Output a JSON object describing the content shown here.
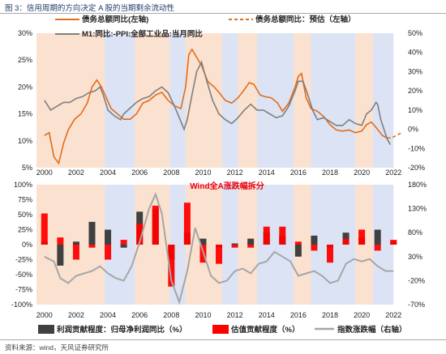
{
  "title": "图 3：信用周期的方向决定 A 股的当期剩余流动性",
  "source": "资料来源：wind，天风证券研究所",
  "colors": {
    "orange": "#e46c1b",
    "gray": "#7f7f7f",
    "peach": "#fbe1d0",
    "blue": "#dbe3f4",
    "dark": "#404040",
    "red": "#ff0000",
    "lightgray": "#a6a6a6"
  },
  "chart_data": [
    {
      "type": "line",
      "legend": [
        "债务总额同比(左轴)",
        "债务总额同比：预估（左轴）",
        "M1:同比:-PPI:全部工业品:当月同比"
      ],
      "x_ticks": [
        "2000",
        "2002",
        "2004",
        "2006",
        "2008",
        "2010",
        "2012",
        "2014",
        "2016",
        "2018",
        "2020",
        "2022"
      ],
      "y_left_ticks": [
        "30%",
        "25%",
        "20%",
        "15%",
        "10%",
        "5%"
      ],
      "y_right_ticks": [
        "50%",
        "40%",
        "30%",
        "20%",
        "10%",
        "0%",
        "-10%",
        "-20%"
      ],
      "ylim_left": [
        5,
        30
      ],
      "ylim_right": [
        -20,
        50
      ],
      "shading": [
        {
          "c": "peach",
          "from": 1999.5,
          "to": 2003.8
        },
        {
          "c": "blue",
          "from": 2003.8,
          "to": 2005.7
        },
        {
          "c": "peach",
          "from": 2005.7,
          "to": 2007.9
        },
        {
          "c": "blue",
          "from": 2007.9,
          "to": 2008.9
        },
        {
          "c": "peach",
          "from": 2008.9,
          "to": 2011.2
        },
        {
          "c": "blue",
          "from": 2011.2,
          "to": 2012.2
        },
        {
          "c": "peach",
          "from": 2012.2,
          "to": 2013.4
        },
        {
          "c": "blue",
          "from": 2013.4,
          "to": 2015.7
        },
        {
          "c": "peach",
          "from": 2015.7,
          "to": 2016.8
        },
        {
          "c": "blue",
          "from": 2016.8,
          "to": 2019.6
        },
        {
          "c": "peach",
          "from": 2019.6,
          "to": 2020.7
        },
        {
          "c": "blue",
          "from": 2020.7,
          "to": 2022.0
        }
      ],
      "series": [
        {
          "name": "债务总额同比(左轴)",
          "axis": "left",
          "color": "orange",
          "points": [
            [
              2000.0,
              11
            ],
            [
              2000.3,
              11.5
            ],
            [
              2000.6,
              7
            ],
            [
              2000.9,
              5.8
            ],
            [
              2001.2,
              9.5
            ],
            [
              2001.5,
              12
            ],
            [
              2001.9,
              14
            ],
            [
              2002.3,
              15
            ],
            [
              2002.7,
              17
            ],
            [
              2003.0,
              20
            ],
            [
              2003.3,
              21.3
            ],
            [
              2003.6,
              20
            ],
            [
              2003.9,
              18
            ],
            [
              2004.2,
              16
            ],
            [
              2004.6,
              15
            ],
            [
              2005.0,
              14
            ],
            [
              2005.4,
              14
            ],
            [
              2005.8,
              15
            ],
            [
              2006.2,
              17
            ],
            [
              2006.6,
              17.5
            ],
            [
              2007.0,
              18.5
            ],
            [
              2007.4,
              19
            ],
            [
              2007.8,
              17.5
            ],
            [
              2008.2,
              16.5
            ],
            [
              2008.6,
              16
            ],
            [
              2008.9,
              20
            ],
            [
              2009.1,
              26
            ],
            [
              2009.3,
              27
            ],
            [
              2009.6,
              25.5
            ],
            [
              2009.9,
              24
            ],
            [
              2010.3,
              21
            ],
            [
              2010.7,
              20
            ],
            [
              2011.0,
              19
            ],
            [
              2011.4,
              17.5
            ],
            [
              2011.8,
              17
            ],
            [
              2012.2,
              18
            ],
            [
              2012.6,
              19.5
            ],
            [
              2012.9,
              20.8
            ],
            [
              2013.2,
              20.5
            ],
            [
              2013.6,
              18.5
            ],
            [
              2013.9,
              18.2
            ],
            [
              2014.3,
              18
            ],
            [
              2014.7,
              17
            ],
            [
              2015.0,
              15.5
            ],
            [
              2015.4,
              17
            ],
            [
              2015.8,
              20
            ],
            [
              2016.0,
              22
            ],
            [
              2016.2,
              22.5
            ],
            [
              2016.5,
              18
            ],
            [
              2016.8,
              16
            ],
            [
              2017.2,
              15.5
            ],
            [
              2017.6,
              14.5
            ],
            [
              2018.0,
              13
            ],
            [
              2018.4,
              12
            ],
            [
              2018.8,
              11.8
            ],
            [
              2019.2,
              12
            ],
            [
              2019.6,
              11.5
            ],
            [
              2020.0,
              11.8
            ],
            [
              2020.3,
              13
            ],
            [
              2020.6,
              13.5
            ],
            [
              2020.9,
              12.5
            ],
            [
              2021.3,
              11
            ],
            [
              2021.6,
              10.5
            ]
          ]
        },
        {
          "name": "债务总额同比：预估（左轴）",
          "axis": "left",
          "color": "orange",
          "dashed": true,
          "points": [
            [
              2021.6,
              10.5
            ],
            [
              2021.9,
              10.6
            ],
            [
              2022.2,
              11
            ],
            [
              2022.5,
              11.5
            ]
          ]
        },
        {
          "name": "M1:同比:-PPI:全部工业品:当月同比",
          "axis": "right",
          "color": "gray",
          "points": [
            [
              2000.0,
              15
            ],
            [
              2000.4,
              10
            ],
            [
              2000.8,
              12
            ],
            [
              2001.2,
              14
            ],
            [
              2001.6,
              14
            ],
            [
              2002.0,
              16
            ],
            [
              2002.4,
              17
            ],
            [
              2002.8,
              19
            ],
            [
              2003.2,
              20
            ],
            [
              2003.5,
              22
            ],
            [
              2003.7,
              18
            ],
            [
              2004.0,
              10
            ],
            [
              2004.4,
              7
            ],
            [
              2004.8,
              5
            ],
            [
              2005.0,
              8
            ],
            [
              2005.4,
              11
            ],
            [
              2005.8,
              14
            ],
            [
              2006.2,
              16
            ],
            [
              2006.6,
              17
            ],
            [
              2007.0,
              20
            ],
            [
              2007.4,
              22
            ],
            [
              2007.8,
              19
            ],
            [
              2008.2,
              12
            ],
            [
              2008.5,
              6
            ],
            [
              2008.8,
              0
            ],
            [
              2009.0,
              5
            ],
            [
              2009.3,
              18
            ],
            [
              2009.6,
              30
            ],
            [
              2009.9,
              35
            ],
            [
              2010.2,
              26
            ],
            [
              2010.6,
              15
            ],
            [
              2011.0,
              8
            ],
            [
              2011.4,
              5
            ],
            [
              2011.8,
              3
            ],
            [
              2012.2,
              6
            ],
            [
              2012.6,
              10
            ],
            [
              2013.0,
              13
            ],
            [
              2013.4,
              10
            ],
            [
              2013.8,
              10
            ],
            [
              2014.2,
              8
            ],
            [
              2014.6,
              6
            ],
            [
              2015.0,
              7
            ],
            [
              2015.4,
              12
            ],
            [
              2015.8,
              20
            ],
            [
              2016.0,
              25
            ],
            [
              2016.3,
              25
            ],
            [
              2016.6,
              18
            ],
            [
              2016.9,
              10
            ],
            [
              2017.2,
              5
            ],
            [
              2017.6,
              6
            ],
            [
              2018.0,
              4
            ],
            [
              2018.4,
              2
            ],
            [
              2018.8,
              2
            ],
            [
              2019.2,
              5
            ],
            [
              2019.6,
              3
            ],
            [
              2020.0,
              2
            ],
            [
              2020.3,
              8
            ],
            [
              2020.6,
              10
            ],
            [
              2020.9,
              14
            ],
            [
              2021.0,
              13
            ],
            [
              2021.2,
              5
            ],
            [
              2021.4,
              0
            ],
            [
              2021.6,
              -5
            ],
            [
              2021.8,
              -8
            ]
          ]
        }
      ]
    },
    {
      "type": "bar",
      "annotation": "Wind全A涨跌幅拆分",
      "legend": [
        "利润贡献程度：归母净利润同比（%）",
        "估值贡献程度（%）",
        "指数涨跌幅（右轴）"
      ],
      "x_ticks": [
        "2000",
        "2002",
        "2004",
        "2006",
        "2008",
        "2010",
        "2012",
        "2014",
        "2016",
        "2018",
        "2020",
        "2022"
      ],
      "y_left_ticks": [
        "100%",
        "75%",
        "50%",
        "25%",
        "0%",
        "-25%",
        "-50%",
        "-75%",
        "-100%"
      ],
      "y_right_ticks": [
        "180%",
        "130%",
        "80%",
        "30%",
        "-20%",
        "-70%"
      ],
      "ylim_left": [
        -100,
        100
      ],
      "ylim_right": [
        -70,
        180
      ],
      "shading": [
        {
          "c": "peach",
          "from": 1999.5,
          "to": 2003.8
        },
        {
          "c": "blue",
          "from": 2003.8,
          "to": 2005.7
        },
        {
          "c": "peach",
          "from": 2005.7,
          "to": 2007.9
        },
        {
          "c": "blue",
          "from": 2007.9,
          "to": 2008.9
        },
        {
          "c": "peach",
          "from": 2008.9,
          "to": 2011.2
        },
        {
          "c": "blue",
          "from": 2011.2,
          "to": 2012.2
        },
        {
          "c": "peach",
          "from": 2012.2,
          "to": 2013.4
        },
        {
          "c": "blue",
          "from": 2013.4,
          "to": 2015.7
        },
        {
          "c": "peach",
          "from": 2015.7,
          "to": 2016.8
        },
        {
          "c": "blue",
          "from": 2016.8,
          "to": 2019.6
        },
        {
          "c": "peach",
          "from": 2019.6,
          "to": 2020.7
        },
        {
          "c": "blue",
          "from": 2020.7,
          "to": 2022.0
        }
      ],
      "years": [
        2000,
        2001,
        2002,
        2003,
        2004,
        2005,
        2006,
        2007,
        2008,
        2009,
        2010,
        2011,
        2012,
        2013,
        2014,
        2015,
        2016,
        2017,
        2018,
        2019,
        2020,
        2021,
        2022
      ],
      "series": [
        {
          "name": "利润贡献程度：归母净利润同比（%）",
          "color": "dark",
          "values": [
            5,
            -35,
            5,
            38,
            25,
            -5,
            55,
            60,
            -25,
            20,
            10,
            -5,
            2,
            10,
            20,
            15,
            -20,
            15,
            -5,
            20,
            12,
            25,
            5
          ]
        },
        {
          "name": "估值贡献程度（%）",
          "color": "red",
          "values": [
            52,
            12,
            -25,
            -5,
            -25,
            8,
            35,
            65,
            -70,
            70,
            -30,
            -32,
            -5,
            -5,
            30,
            30,
            5,
            -10,
            -30,
            10,
            25,
            -10,
            8
          ]
        },
        {
          "name": "指数涨跌幅（右轴）",
          "axis": "right",
          "color": "lightgray",
          "points": [
            [
              2000.0,
              30
            ],
            [
              2000.6,
              20
            ],
            [
              2001.0,
              -15
            ],
            [
              2001.5,
              -25
            ],
            [
              2002.0,
              -10
            ],
            [
              2002.5,
              -5
            ],
            [
              2003.0,
              0
            ],
            [
              2003.5,
              10
            ],
            [
              2004.0,
              -5
            ],
            [
              2004.5,
              -15
            ],
            [
              2005.0,
              -20
            ],
            [
              2005.5,
              10
            ],
            [
              2006.0,
              60
            ],
            [
              2006.6,
              130
            ],
            [
              2007.0,
              160
            ],
            [
              2007.4,
              120
            ],
            [
              2008.0,
              -20
            ],
            [
              2008.5,
              -65
            ],
            [
              2009.0,
              0
            ],
            [
              2009.5,
              90
            ],
            [
              2010.0,
              40
            ],
            [
              2010.5,
              -10
            ],
            [
              2011.0,
              -25
            ],
            [
              2011.5,
              -20
            ],
            [
              2012.0,
              0
            ],
            [
              2012.5,
              5
            ],
            [
              2013.0,
              -5
            ],
            [
              2013.5,
              15
            ],
            [
              2014.0,
              20
            ],
            [
              2014.5,
              40
            ],
            [
              2015.0,
              30
            ],
            [
              2015.5,
              20
            ],
            [
              2016.0,
              -10
            ],
            [
              2016.5,
              -5
            ],
            [
              2017.0,
              0
            ],
            [
              2017.5,
              -10
            ],
            [
              2018.0,
              -25
            ],
            [
              2018.5,
              -20
            ],
            [
              2019.0,
              15
            ],
            [
              2019.5,
              25
            ],
            [
              2020.0,
              20
            ],
            [
              2020.5,
              25
            ],
            [
              2021.0,
              10
            ],
            [
              2021.5,
              0
            ],
            [
              2022.0,
              0
            ]
          ]
        }
      ]
    }
  ]
}
